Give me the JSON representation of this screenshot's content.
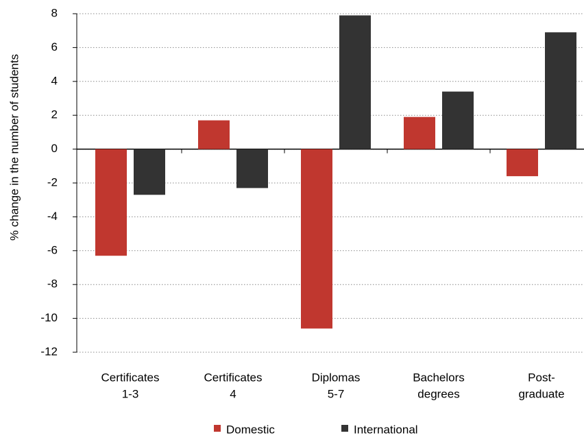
{
  "chart_data": {
    "type": "bar",
    "y_label": "% change in the number of students",
    "categories": [
      [
        "Certificates",
        "1-3"
      ],
      [
        "Certificates",
        "4"
      ],
      [
        "Diplomas",
        "5-7"
      ],
      [
        "Bachelors",
        "degrees"
      ],
      [
        "Post-",
        "graduate"
      ]
    ],
    "series": [
      {
        "name": "Domestic",
        "color": "#c0372f",
        "values": [
          -6.3,
          1.7,
          -10.6,
          1.9,
          -1.6
        ]
      },
      {
        "name": "International",
        "color": "#333333",
        "values": [
          -2.7,
          -2.3,
          7.9,
          3.4,
          6.9
        ]
      }
    ],
    "ylim": [
      -12,
      8
    ],
    "yticks": [
      -12,
      -10,
      -8,
      -6,
      -4,
      -2,
      0,
      2,
      4,
      6,
      8
    ],
    "grid": true,
    "legend": "bottom"
  }
}
